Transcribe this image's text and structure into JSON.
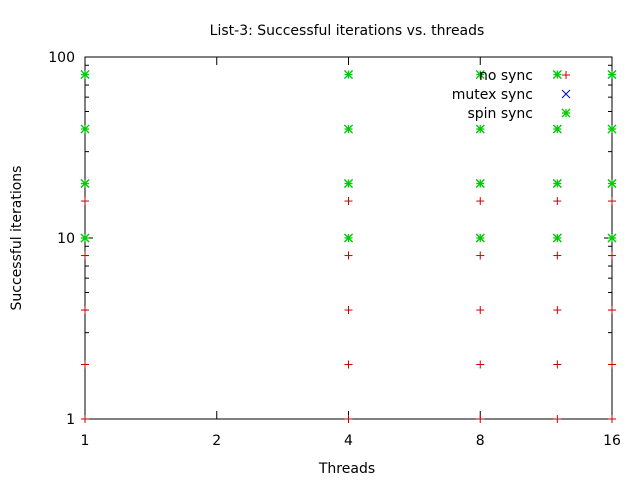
{
  "chart_data": {
    "type": "scatter",
    "title": "List-3: Successful iterations vs. threads",
    "xlabel": "Threads",
    "ylabel": "Successful iterations",
    "x_scale": "log",
    "y_scale": "log",
    "xlim": [
      1,
      16
    ],
    "ylim": [
      1,
      100
    ],
    "x_ticks": [
      1,
      2,
      4,
      8,
      16
    ],
    "x_tick_labels": [
      "1",
      "2",
      "4",
      "8",
      "16"
    ],
    "y_ticks": [
      1,
      10,
      100
    ],
    "y_tick_labels": [
      "1",
      "10",
      "100"
    ],
    "grid": false,
    "legend_position": "top-right",
    "series": [
      {
        "name": "no sync",
        "color": "#cc0000",
        "marker": "plus",
        "points": [
          [
            1,
            1
          ],
          [
            1,
            2
          ],
          [
            1,
            4
          ],
          [
            1,
            8
          ],
          [
            1,
            16
          ],
          [
            4,
            1
          ],
          [
            4,
            2
          ],
          [
            4,
            4
          ],
          [
            4,
            8
          ],
          [
            4,
            16
          ],
          [
            8,
            1
          ],
          [
            8,
            2
          ],
          [
            8,
            4
          ],
          [
            8,
            8
          ],
          [
            8,
            16
          ],
          [
            12,
            1
          ],
          [
            12,
            2
          ],
          [
            12,
            4
          ],
          [
            12,
            8
          ],
          [
            12,
            16
          ],
          [
            16,
            1
          ],
          [
            16,
            2
          ],
          [
            16,
            4
          ],
          [
            16,
            8
          ],
          [
            16,
            16
          ]
        ]
      },
      {
        "name": "mutex sync",
        "color": "#0000dd",
        "marker": "x",
        "points": [
          [
            1,
            10
          ],
          [
            1,
            20
          ],
          [
            1,
            40
          ],
          [
            1,
            80
          ],
          [
            4,
            10
          ],
          [
            4,
            20
          ],
          [
            4,
            40
          ],
          [
            4,
            80
          ],
          [
            8,
            10
          ],
          [
            8,
            20
          ],
          [
            8,
            40
          ],
          [
            8,
            80
          ],
          [
            12,
            10
          ],
          [
            12,
            20
          ],
          [
            12,
            40
          ],
          [
            12,
            80
          ],
          [
            16,
            10
          ],
          [
            16,
            20
          ],
          [
            16,
            40
          ],
          [
            16,
            80
          ]
        ]
      },
      {
        "name": "spin sync",
        "color": "#00cc00",
        "marker": "star",
        "points": [
          [
            1,
            10
          ],
          [
            1,
            20
          ],
          [
            1,
            40
          ],
          [
            1,
            80
          ],
          [
            4,
            10
          ],
          [
            4,
            20
          ],
          [
            4,
            40
          ],
          [
            4,
            80
          ],
          [
            8,
            10
          ],
          [
            8,
            20
          ],
          [
            8,
            40
          ],
          [
            8,
            80
          ],
          [
            12,
            10
          ],
          [
            12,
            20
          ],
          [
            12,
            40
          ],
          [
            12,
            80
          ],
          [
            16,
            10
          ],
          [
            16,
            20
          ],
          [
            16,
            40
          ],
          [
            16,
            80
          ]
        ]
      }
    ]
  }
}
